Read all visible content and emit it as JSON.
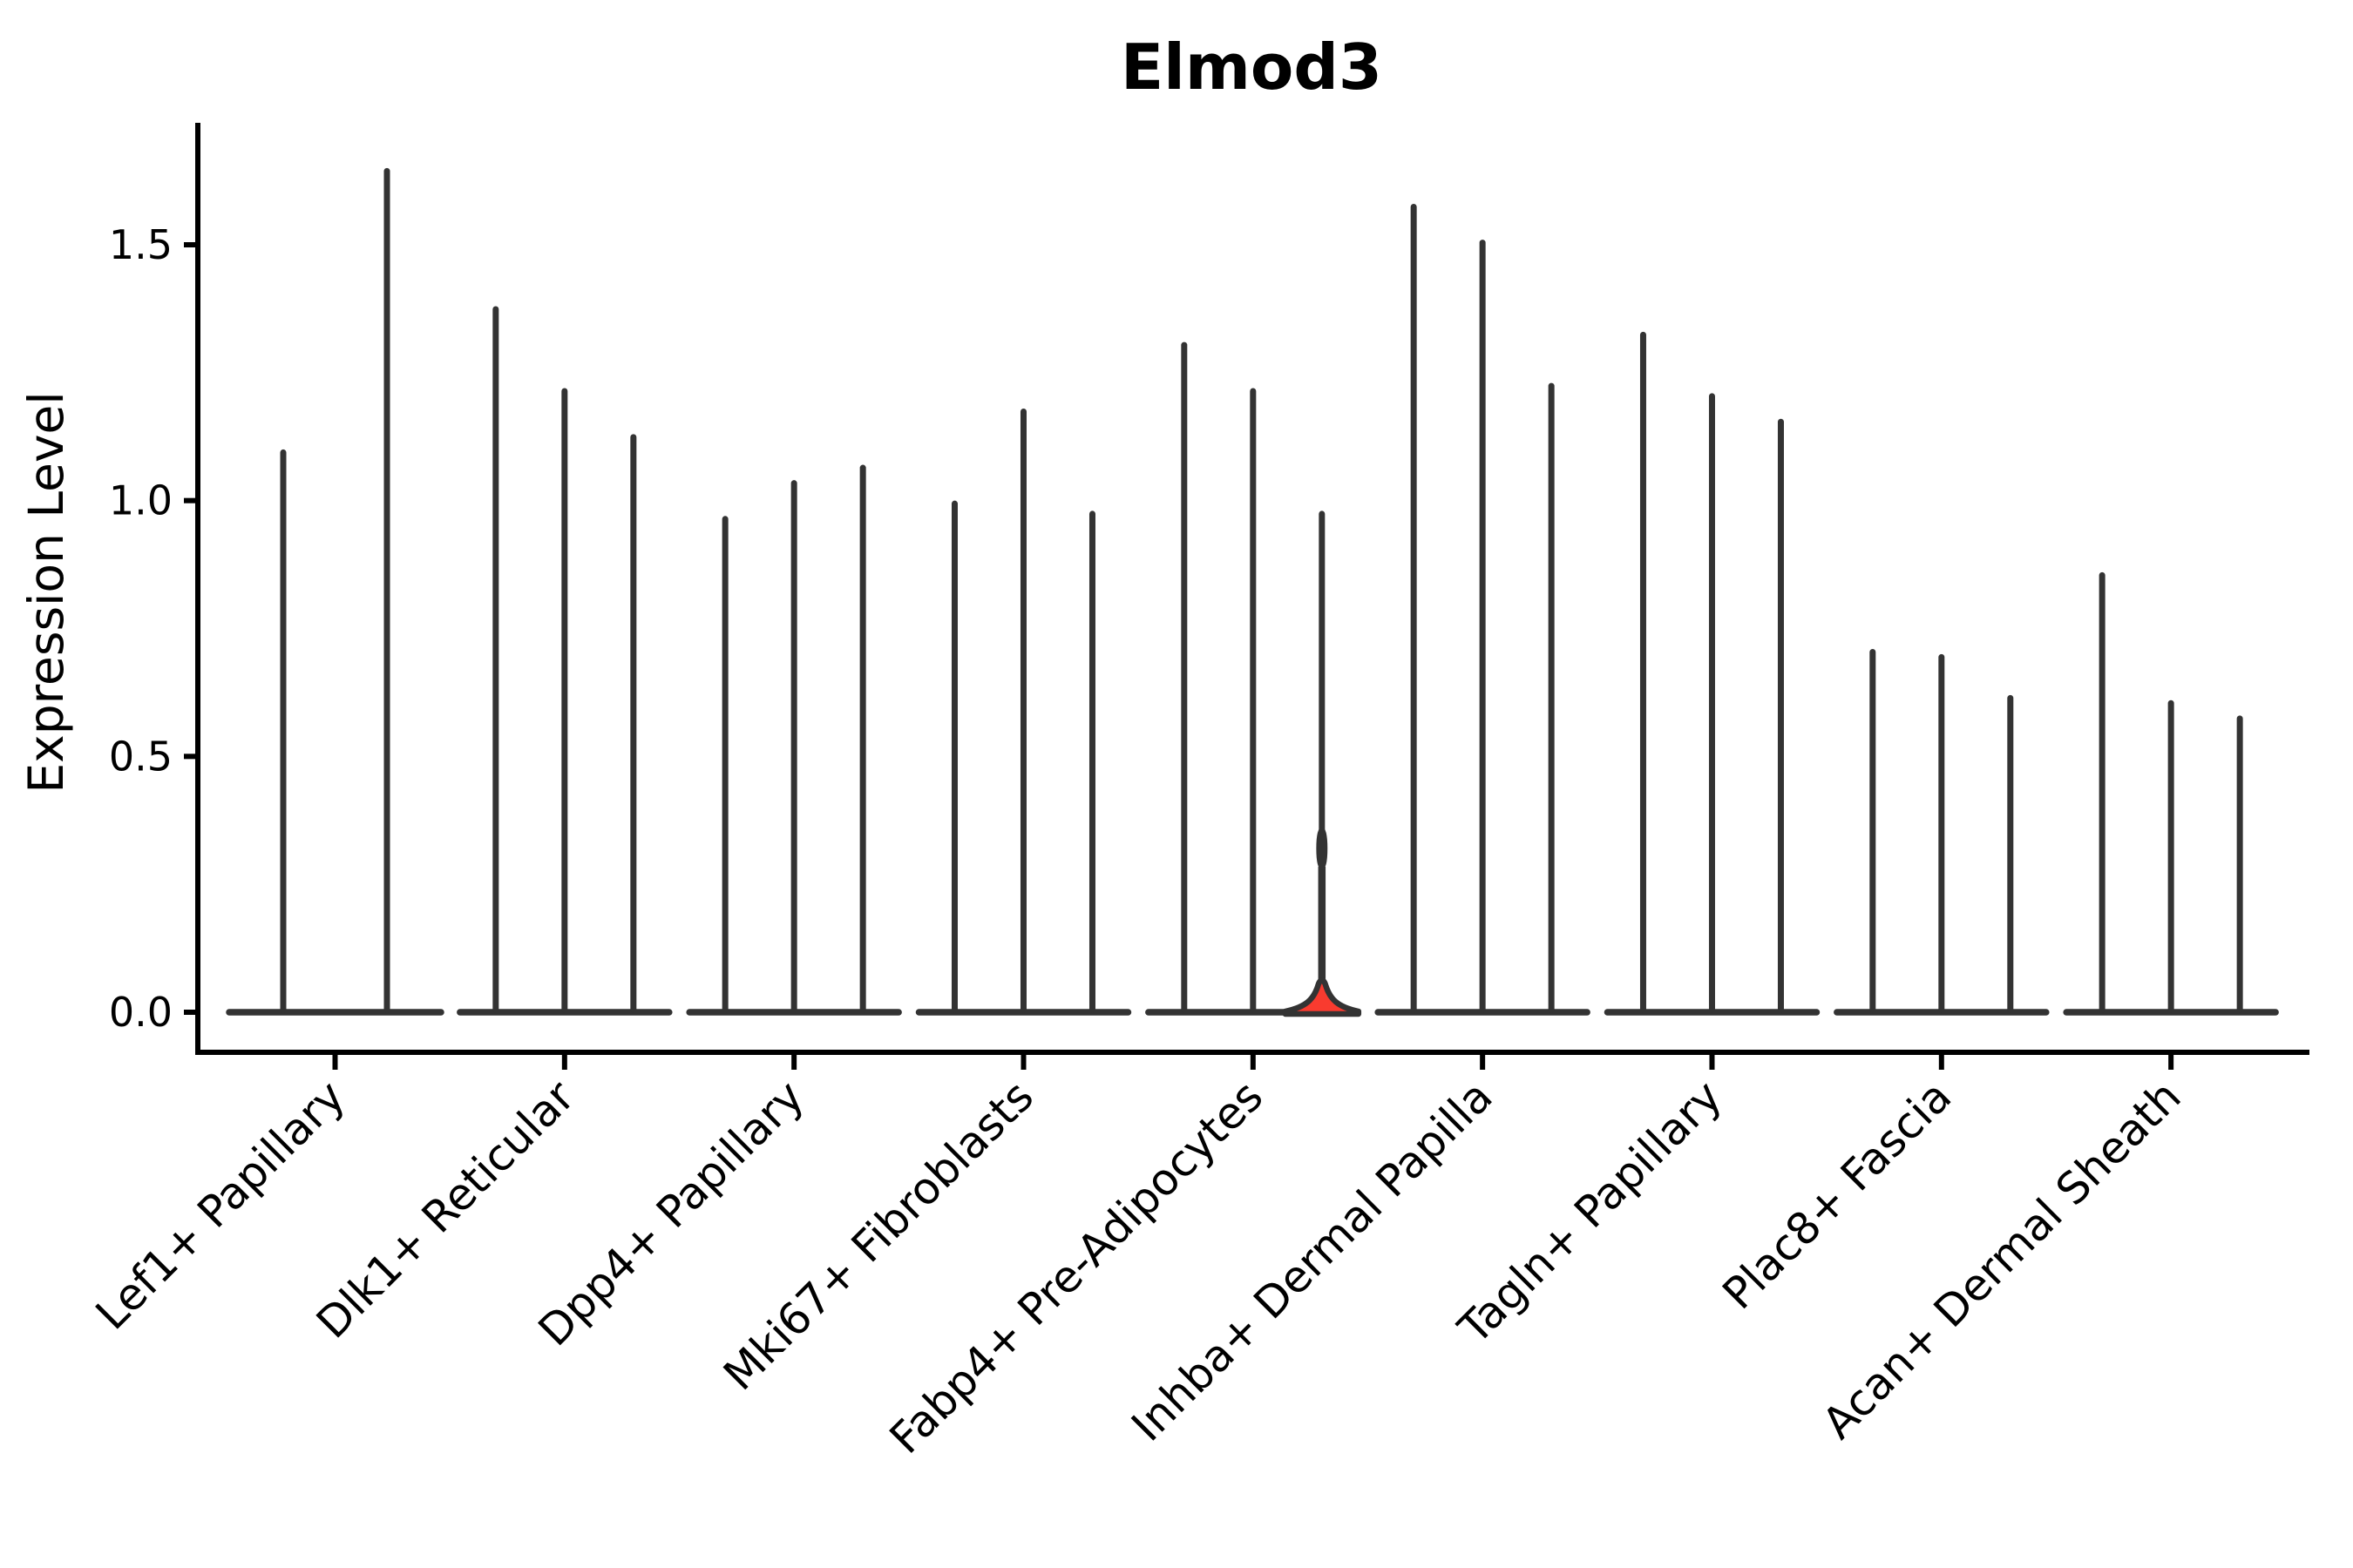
{
  "title": "Elmod3",
  "y_axis": {
    "label": "Expression Level",
    "ticks": [
      {
        "value": 0.0,
        "label": "0.0"
      },
      {
        "value": 0.5,
        "label": "0.5"
      },
      {
        "value": 1.0,
        "label": "1.0"
      },
      {
        "value": 1.5,
        "label": "1.5"
      }
    ]
  },
  "x_axis": {
    "categories": [
      "Lef1+ Papillary",
      "Dlk1+ Reticular",
      "Dpp4+ Papillary",
      "Mki67+ Fibroblasts",
      "Fabp4+ Pre-Adipocytes",
      "Inhba+ Dermal Papilla",
      "Tagln+ Papillary",
      "Plac8+ Fascia",
      "Acan+ Dermal Sheath"
    ]
  },
  "chart_data": {
    "type": "violin",
    "title": "Elmod3",
    "xlabel": "",
    "ylabel": "Expression Level",
    "ylim": [
      -0.08,
      1.74
    ],
    "yticks": [
      0.0,
      0.5,
      1.0,
      1.5
    ],
    "grid": false,
    "legend": "none",
    "description": "Stacked-violin style gene expression plot; each category holds 2-3 extremely thin spike-like violins rising from a flat base at 0. Only one violin is highlighted red.",
    "categories": [
      "Lef1+ Papillary",
      "Dlk1+ Reticular",
      "Dpp4+ Papillary",
      "Mki67+ Fibroblasts",
      "Fabp4+ Pre-Adipocytes",
      "Inhba+ Dermal Papilla",
      "Tagln+ Papillary",
      "Plac8+ Fascia",
      "Acan+ Dermal Sheath"
    ],
    "series": [
      {
        "category": "Lef1+ Papillary",
        "violin_max_expression": [
          1.1,
          1.65
        ]
      },
      {
        "category": "Dlk1+ Reticular",
        "violin_max_expression": [
          1.38,
          1.22,
          1.13
        ]
      },
      {
        "category": "Dpp4+ Papillary",
        "violin_max_expression": [
          0.97,
          1.04,
          1.07
        ]
      },
      {
        "category": "Mki67+ Fibroblasts",
        "violin_max_expression": [
          1.0,
          1.18,
          0.98
        ]
      },
      {
        "category": "Fabp4+ Pre-Adipocytes",
        "violin_max_expression": [
          1.31,
          1.22,
          0.98
        ]
      },
      {
        "category": "Inhba+ Dermal Papilla",
        "violin_max_expression": [
          1.58,
          1.51,
          1.23
        ]
      },
      {
        "category": "Tagln+ Papillary",
        "violin_max_expression": [
          1.33,
          1.21,
          1.16
        ]
      },
      {
        "category": "Plac8+ Fascia",
        "violin_max_expression": [
          0.71,
          0.7,
          0.62
        ]
      },
      {
        "category": "Acan+ Dermal Sheath",
        "violin_max_expression": [
          0.86,
          0.61,
          0.58
        ]
      }
    ],
    "highlight": {
      "category": "Fabp4+ Pre-Adipocytes",
      "violin_index": 2,
      "max": 0.98,
      "bulge_center": 0.32,
      "has_wide_base": true,
      "fill": "#f93b2f"
    }
  },
  "colors": {
    "background": "#ffffff",
    "axis": "#000000",
    "text": "#000000",
    "violin_stroke": "#333333",
    "highlight_fill": "#f93b2f"
  }
}
